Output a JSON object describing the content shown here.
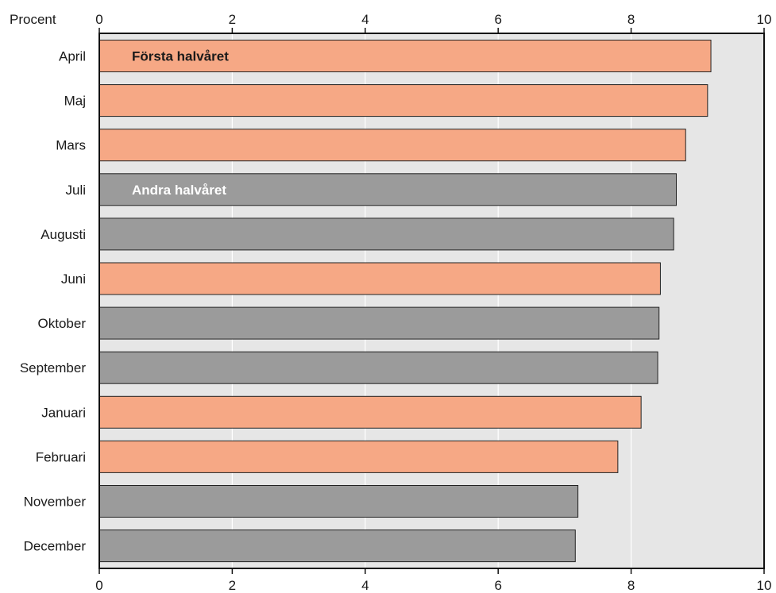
{
  "chart_data": {
    "type": "bar",
    "orientation": "horizontal",
    "unit_label": "Procent",
    "xlim": [
      0,
      10
    ],
    "x_ticks": [
      0,
      2,
      4,
      6,
      8,
      10
    ],
    "grid": true,
    "categories": [
      "April",
      "Maj",
      "Mars",
      "Juli",
      "Augusti",
      "Juni",
      "Oktober",
      "September",
      "Januari",
      "Februari",
      "November",
      "December"
    ],
    "values": [
      9.2,
      9.15,
      8.82,
      8.68,
      8.64,
      8.44,
      8.42,
      8.4,
      8.15,
      7.8,
      7.2,
      7.16
    ],
    "groups": [
      "first",
      "first",
      "first",
      "second",
      "second",
      "first",
      "second",
      "second",
      "first",
      "first",
      "second",
      "second"
    ],
    "series": [
      {
        "key": "first",
        "name": "Första halvåret",
        "color": "#f6a885"
      },
      {
        "key": "second",
        "name": "Andra halvåret",
        "color": "#9b9b9b"
      }
    ],
    "background_color": "#e6e6e6"
  }
}
